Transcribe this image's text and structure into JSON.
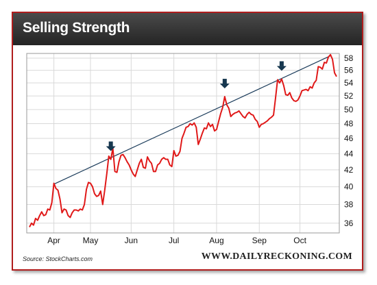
{
  "header": {
    "title": "Selling Strength"
  },
  "footer": {
    "source": "Source: StockCharts.com",
    "site": "WWW.DAILYRECKONING.COM"
  },
  "colors": {
    "price_line": "#e01818",
    "trend_line": "#1a3b5a",
    "arrow": "#17374f",
    "frame": "#b01c1c",
    "header_bg": "#333333"
  },
  "icons": {
    "arrow": "arrow-down-icon"
  },
  "chart_data": {
    "type": "line",
    "title": "Selling Strength",
    "xlabel": "",
    "ylabel": "",
    "x_ticks": [
      "Apr",
      "May",
      "Jun",
      "Jul",
      "Aug",
      "Sep",
      "Oct"
    ],
    "y_ticks": [
      36,
      38,
      40,
      42,
      44,
      46,
      48,
      50,
      52,
      54,
      56,
      58
    ],
    "ylim": [
      35,
      58.8
    ],
    "y_scale": "log",
    "y_axis_position": "right",
    "grid": true,
    "series": [
      {
        "values": [
          35.6,
          36.0,
          35.8,
          36.5,
          36.3,
          36.8,
          37.2,
          36.8,
          36.9,
          37.5,
          37.4,
          38.2,
          40.4,
          39.8,
          39.6,
          38.6,
          37.1,
          37.5,
          37.4,
          36.8,
          36.6,
          37.1,
          37.4,
          37.4,
          37.3,
          37.5,
          37.4,
          38.0,
          39.7,
          40.5,
          40.4,
          40.0,
          39.2,
          38.9,
          39.0,
          39.5,
          38.0,
          39.6,
          41.5,
          43.7,
          43.3,
          44.7,
          41.8,
          41.7,
          43.0,
          43.8,
          43.9,
          43.5,
          43.0,
          42.6,
          42.0,
          41.5,
          41.2,
          42.0,
          42.8,
          43.3,
          42.3,
          42.2,
          43.6,
          43.1,
          42.8,
          41.8,
          41.8,
          42.6,
          42.8,
          43.3,
          43.5,
          43.3,
          43.3,
          42.6,
          42.4,
          44.4,
          43.7,
          43.8,
          44.3,
          46.0,
          46.7,
          47.5,
          47.6,
          48.0,
          47.8,
          48.1,
          47.5,
          45.2,
          45.9,
          46.7,
          47.4,
          47.3,
          48.1,
          47.6,
          47.9,
          47.0,
          47.2,
          48.3,
          49.4,
          50.3,
          51.9,
          50.7,
          50.2,
          49.0,
          49.3,
          49.5,
          49.6,
          49.8,
          49.4,
          49.0,
          48.8,
          49.3,
          49.6,
          49.3,
          49.2,
          48.6,
          48.3,
          47.5,
          47.9,
          48.0,
          48.2,
          48.4,
          48.7,
          48.9,
          49.2,
          51.7,
          54.5,
          54.0,
          54.6,
          53.6,
          52.2,
          52.1,
          52.5,
          51.7,
          51.3,
          51.2,
          51.4,
          52.0,
          52.8,
          52.9,
          53.0,
          52.8,
          53.4,
          53.2,
          54.0,
          54.4,
          56.6,
          56.5,
          56.2,
          57.3,
          57.2,
          58.2,
          58.6,
          57.8,
          55.6,
          55.0
        ]
      }
    ],
    "trendline": {
      "x": [
        12,
        148
      ],
      "y": [
        40.3,
        58.4
      ]
    },
    "arrows_at": [
      40,
      96,
      124
    ],
    "x_tick_positions": [
      12,
      30,
      50,
      71,
      92,
      113,
      133
    ]
  }
}
